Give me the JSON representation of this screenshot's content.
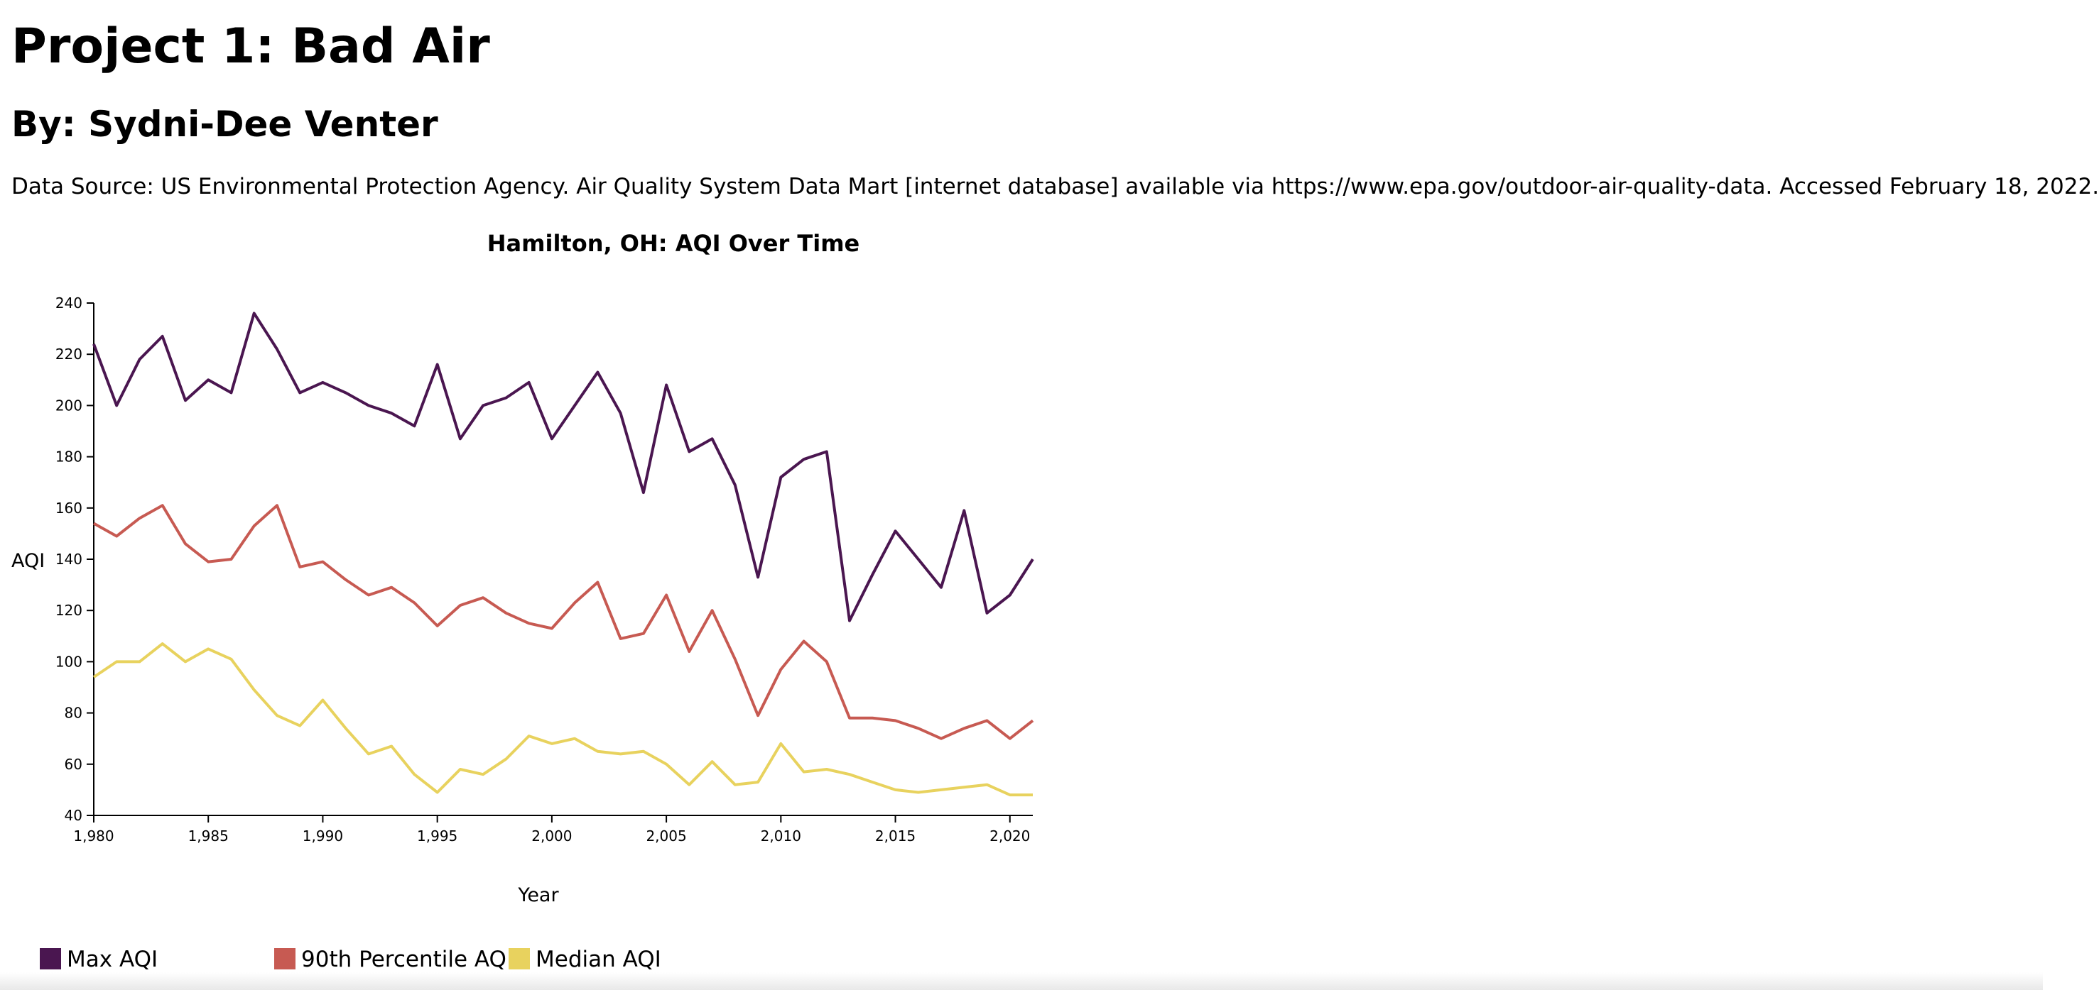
{
  "header": {
    "title": "Project 1: Bad Air",
    "author": "By: Sydni-Dee Venter",
    "source": "Data Source: US Environmental Protection Agency. Air Quality System Data Mart [internet database] available via https://www.epa.gov/outdoor-air-quality-data. Accessed February 18, 2022."
  },
  "chart_data": {
    "type": "line",
    "title": "Hamilton, OH: AQI Over Time",
    "xlabel": "Year",
    "ylabel": "AQI",
    "xlim": [
      1980,
      2021
    ],
    "ylim": [
      40,
      240
    ],
    "xticks": [
      1980,
      1985,
      1990,
      1995,
      2000,
      2005,
      2010,
      2015,
      2020
    ],
    "xtick_labels": [
      "1,980",
      "1,985",
      "1,990",
      "1,995",
      "2,000",
      "2,005",
      "2,010",
      "2,015",
      "2,020"
    ],
    "yticks": [
      40,
      60,
      80,
      100,
      120,
      140,
      160,
      180,
      200,
      220,
      240
    ],
    "grid": false,
    "legend_position": "bottom-left",
    "x": [
      1980,
      1981,
      1982,
      1983,
      1984,
      1985,
      1986,
      1987,
      1988,
      1989,
      1990,
      1991,
      1992,
      1993,
      1994,
      1995,
      1996,
      1997,
      1998,
      1999,
      2000,
      2001,
      2002,
      2003,
      2004,
      2005,
      2006,
      2007,
      2008,
      2009,
      2010,
      2011,
      2012,
      2013,
      2014,
      2015,
      2016,
      2017,
      2018,
      2019,
      2020,
      2021
    ],
    "series": [
      {
        "name": "Max AQI",
        "color": "#4a1650",
        "values": [
          224,
          200,
          218,
          227,
          202,
          210,
          205,
          236,
          222,
          205,
          209,
          205,
          200,
          197,
          192,
          216,
          187,
          200,
          203,
          209,
          187,
          200,
          213,
          197,
          166,
          208,
          182,
          187,
          169,
          133,
          172,
          179,
          182,
          116,
          134,
          151,
          140,
          129,
          159,
          119,
          126,
          140
        ]
      },
      {
        "name": "90th Percentile AQI",
        "color": "#c75a52",
        "values": [
          154,
          149,
          156,
          161,
          146,
          139,
          140,
          153,
          161,
          137,
          139,
          132,
          126,
          129,
          123,
          114,
          122,
          125,
          119,
          115,
          113,
          123,
          131,
          109,
          111,
          126,
          104,
          120,
          101,
          79,
          97,
          108,
          100,
          78,
          78,
          77,
          74,
          70,
          74,
          77,
          70,
          77
        ]
      },
      {
        "name": "Median AQI",
        "color": "#e8d25e",
        "values": [
          94,
          100,
          100,
          107,
          100,
          105,
          101,
          89,
          79,
          75,
          85,
          74,
          64,
          67,
          56,
          49,
          58,
          56,
          62,
          71,
          68,
          70,
          65,
          64,
          65,
          60,
          52,
          61,
          52,
          53,
          68,
          57,
          58,
          56,
          53,
          50,
          49,
          50,
          51,
          52,
          48,
          48
        ]
      }
    ]
  }
}
